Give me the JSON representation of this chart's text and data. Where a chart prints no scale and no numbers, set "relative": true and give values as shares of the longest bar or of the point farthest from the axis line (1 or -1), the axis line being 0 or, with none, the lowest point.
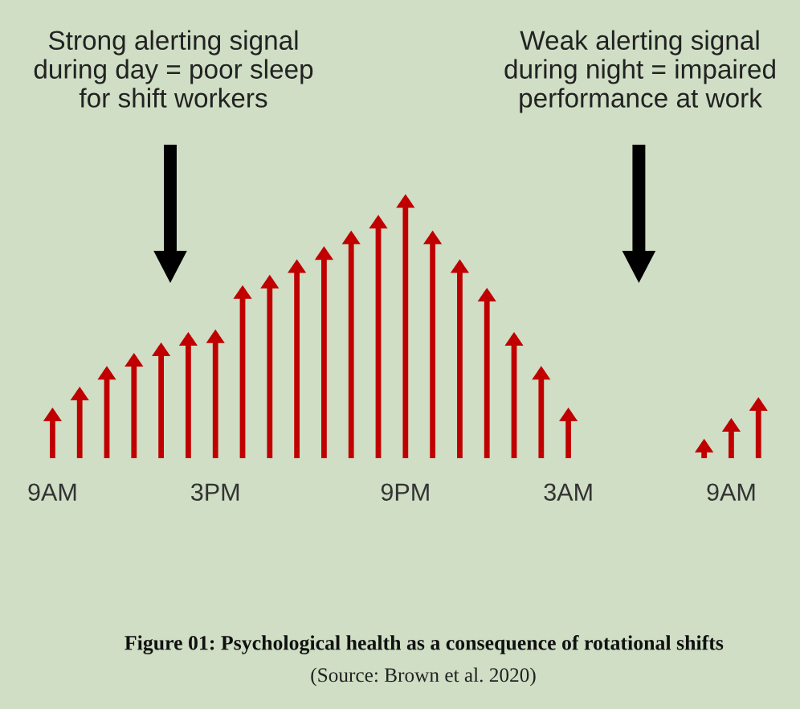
{
  "chart_data": {
    "type": "bar",
    "relative": true,
    "color": "#c00000",
    "title": "Figure 01: Psychological health as a consequence of rotational shifts",
    "annotations": [
      "Strong alerting signal\nduring day = poor sleep\nfor shift workers",
      "Weak alerting signal\nduring night = impaired\nperformance at work",
      "(Source: Brown et al. 2020)"
    ],
    "categories": [
      "9AM",
      null,
      null,
      null,
      null,
      null,
      "3PM",
      null,
      null,
      null,
      null,
      null,
      null,
      "9PM",
      null,
      null,
      null,
      null,
      null,
      "3AM",
      null,
      null,
      null,
      null,
      null,
      "9AM",
      null
    ],
    "values": [
      0.18,
      0.26,
      0.34,
      0.39,
      0.43,
      0.47,
      0.48,
      0.65,
      0.69,
      0.75,
      0.8,
      0.86,
      0.92,
      1,
      0.86,
      0.75,
      0.64,
      0.47,
      0.34,
      0.18,
      null,
      null,
      null,
      null,
      0.06,
      0.14,
      0.22
    ]
  }
}
